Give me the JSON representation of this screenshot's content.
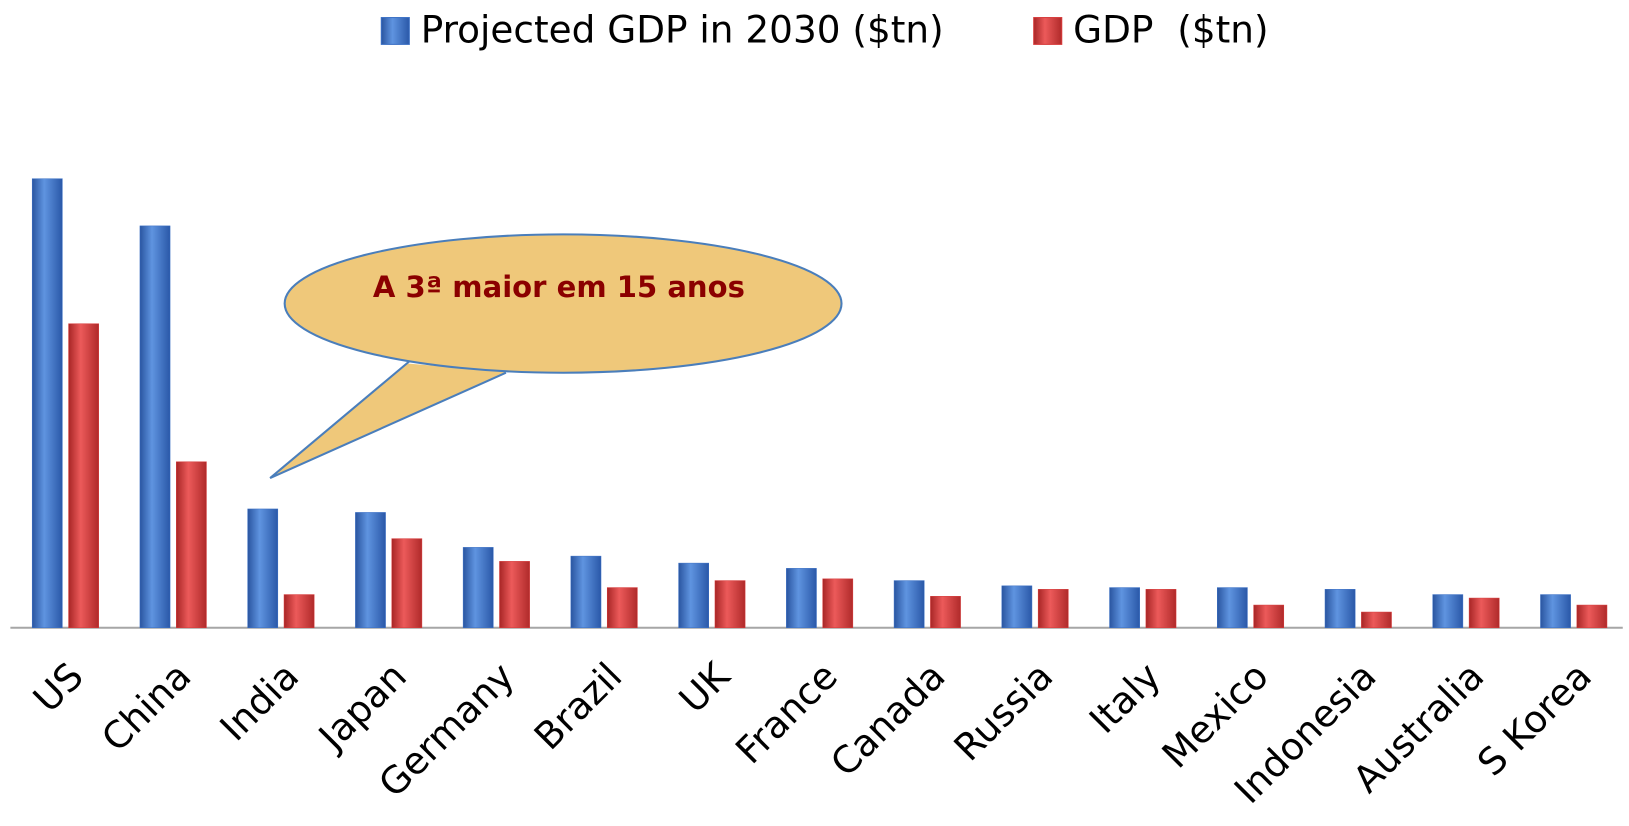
{
  "chart_data": {
    "type": "bar",
    "annotation": "A 3ª maior em 15 anos",
    "categories": [
      "US",
      "China",
      "India",
      "Japan",
      "Germany",
      "Brazil",
      "UK",
      "France",
      "Canada",
      "Russia",
      "Italy",
      "Mexico",
      "Indonesia",
      "Australia",
      "S Korea"
    ],
    "series": [
      {
        "name": "Projected GDP in 2030 ($tn)",
        "color": "#3a6fc4",
        "values": [
          25.7,
          23.0,
          6.8,
          6.6,
          4.6,
          4.1,
          3.7,
          3.4,
          2.7,
          2.4,
          2.3,
          2.3,
          2.2,
          1.9,
          1.9
        ]
      },
      {
        "name": "GDP  ($tn)",
        "color": "#d63a3a",
        "values": [
          17.4,
          9.5,
          1.9,
          5.1,
          3.8,
          2.3,
          2.7,
          2.8,
          1.8,
          2.2,
          2.2,
          1.3,
          0.9,
          1.7,
          1.3
        ]
      }
    ],
    "ylim": [
      0,
      26
    ],
    "legend": "top"
  }
}
